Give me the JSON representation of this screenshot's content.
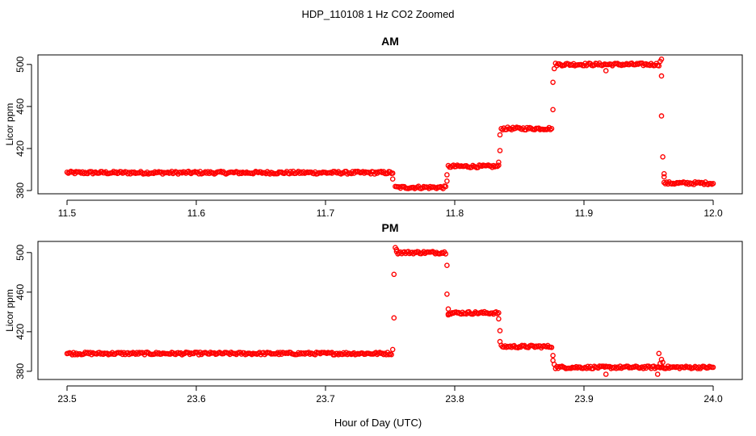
{
  "figure": {
    "title": "HDP_110108  1 Hz CO2 Zoomed",
    "xlabel": "Hour of Day (UTC)"
  },
  "colors": {
    "points": "#ff0000"
  },
  "chart_data": [
    {
      "type": "scatter",
      "title": "AM",
      "xlabel": "",
      "ylabel": "Licor ppm",
      "xlim": [
        11.5,
        12.0
      ],
      "ylim": [
        380,
        506
      ],
      "x_ticks": [
        "11.5",
        "11.6",
        "11.7",
        "11.8",
        "11.9",
        "12.0"
      ],
      "x_tick_values": [
        11.5,
        11.6,
        11.7,
        11.8,
        11.9,
        12.0
      ],
      "y_ticks": [
        "380",
        "420",
        "460",
        "500"
      ],
      "y_tick_values": [
        380,
        420,
        460,
        500
      ],
      "marker": "open-circle",
      "segments": [
        {
          "x_start": 11.5,
          "x_end": 11.752,
          "y": 397
        },
        {
          "x_start": 11.754,
          "x_end": 11.793,
          "y": 383
        },
        {
          "x_start": 11.795,
          "x_end": 11.834,
          "y": 403
        },
        {
          "x_start": 11.836,
          "x_end": 11.875,
          "y": 439
        },
        {
          "x_start": 11.878,
          "x_end": 11.958,
          "y": 500
        },
        {
          "x_start": 11.962,
          "x_end": 12.0,
          "y": 387
        }
      ],
      "points": [
        [
          11.752,
          391
        ],
        [
          11.794,
          389
        ],
        [
          11.794,
          395
        ],
        [
          11.834,
          407
        ],
        [
          11.835,
          418
        ],
        [
          11.835,
          433
        ],
        [
          11.876,
          457
        ],
        [
          11.876,
          483
        ],
        [
          11.877,
          496
        ],
        [
          11.917,
          494
        ],
        [
          11.959,
          503
        ],
        [
          11.96,
          505
        ],
        [
          11.96,
          489
        ],
        [
          11.96,
          451
        ],
        [
          11.961,
          412
        ],
        [
          11.962,
          396
        ],
        [
          11.962,
          393
        ]
      ]
    },
    {
      "type": "scatter",
      "title": "PM",
      "xlabel": "Hour of Day (UTC)",
      "ylabel": "Licor ppm",
      "xlim": [
        23.5,
        24.0
      ],
      "ylim": [
        375,
        508
      ],
      "x_ticks": [
        "23.5",
        "23.6",
        "23.7",
        "23.8",
        "23.9",
        "24.0"
      ],
      "x_tick_values": [
        23.5,
        23.6,
        23.7,
        23.8,
        23.9,
        24.0
      ],
      "y_ticks": [
        "380",
        "420",
        "460",
        "500"
      ],
      "y_tick_values": [
        380,
        420,
        460,
        500
      ],
      "marker": "open-circle",
      "segments": [
        {
          "x_start": 23.5,
          "x_end": 23.751,
          "y": 398
        },
        {
          "x_start": 23.755,
          "x_end": 23.793,
          "y": 500
        },
        {
          "x_start": 23.795,
          "x_end": 23.834,
          "y": 439
        },
        {
          "x_start": 23.836,
          "x_end": 23.875,
          "y": 405
        },
        {
          "x_start": 23.878,
          "x_end": 24.0,
          "y": 384
        }
      ],
      "points": [
        [
          23.752,
          402
        ],
        [
          23.753,
          434
        ],
        [
          23.753,
          478
        ],
        [
          23.754,
          505
        ],
        [
          23.755,
          503
        ],
        [
          23.794,
          487
        ],
        [
          23.794,
          458
        ],
        [
          23.795,
          443
        ],
        [
          23.795,
          437
        ],
        [
          23.834,
          433
        ],
        [
          23.835,
          421
        ],
        [
          23.835,
          410
        ],
        [
          23.876,
          396
        ],
        [
          23.876,
          391
        ],
        [
          23.877,
          387
        ],
        [
          23.917,
          377
        ],
        [
          23.917,
          385
        ],
        [
          23.957,
          377
        ],
        [
          23.958,
          398
        ],
        [
          23.959,
          388
        ],
        [
          23.96,
          392
        ],
        [
          23.961,
          389
        ]
      ]
    }
  ]
}
